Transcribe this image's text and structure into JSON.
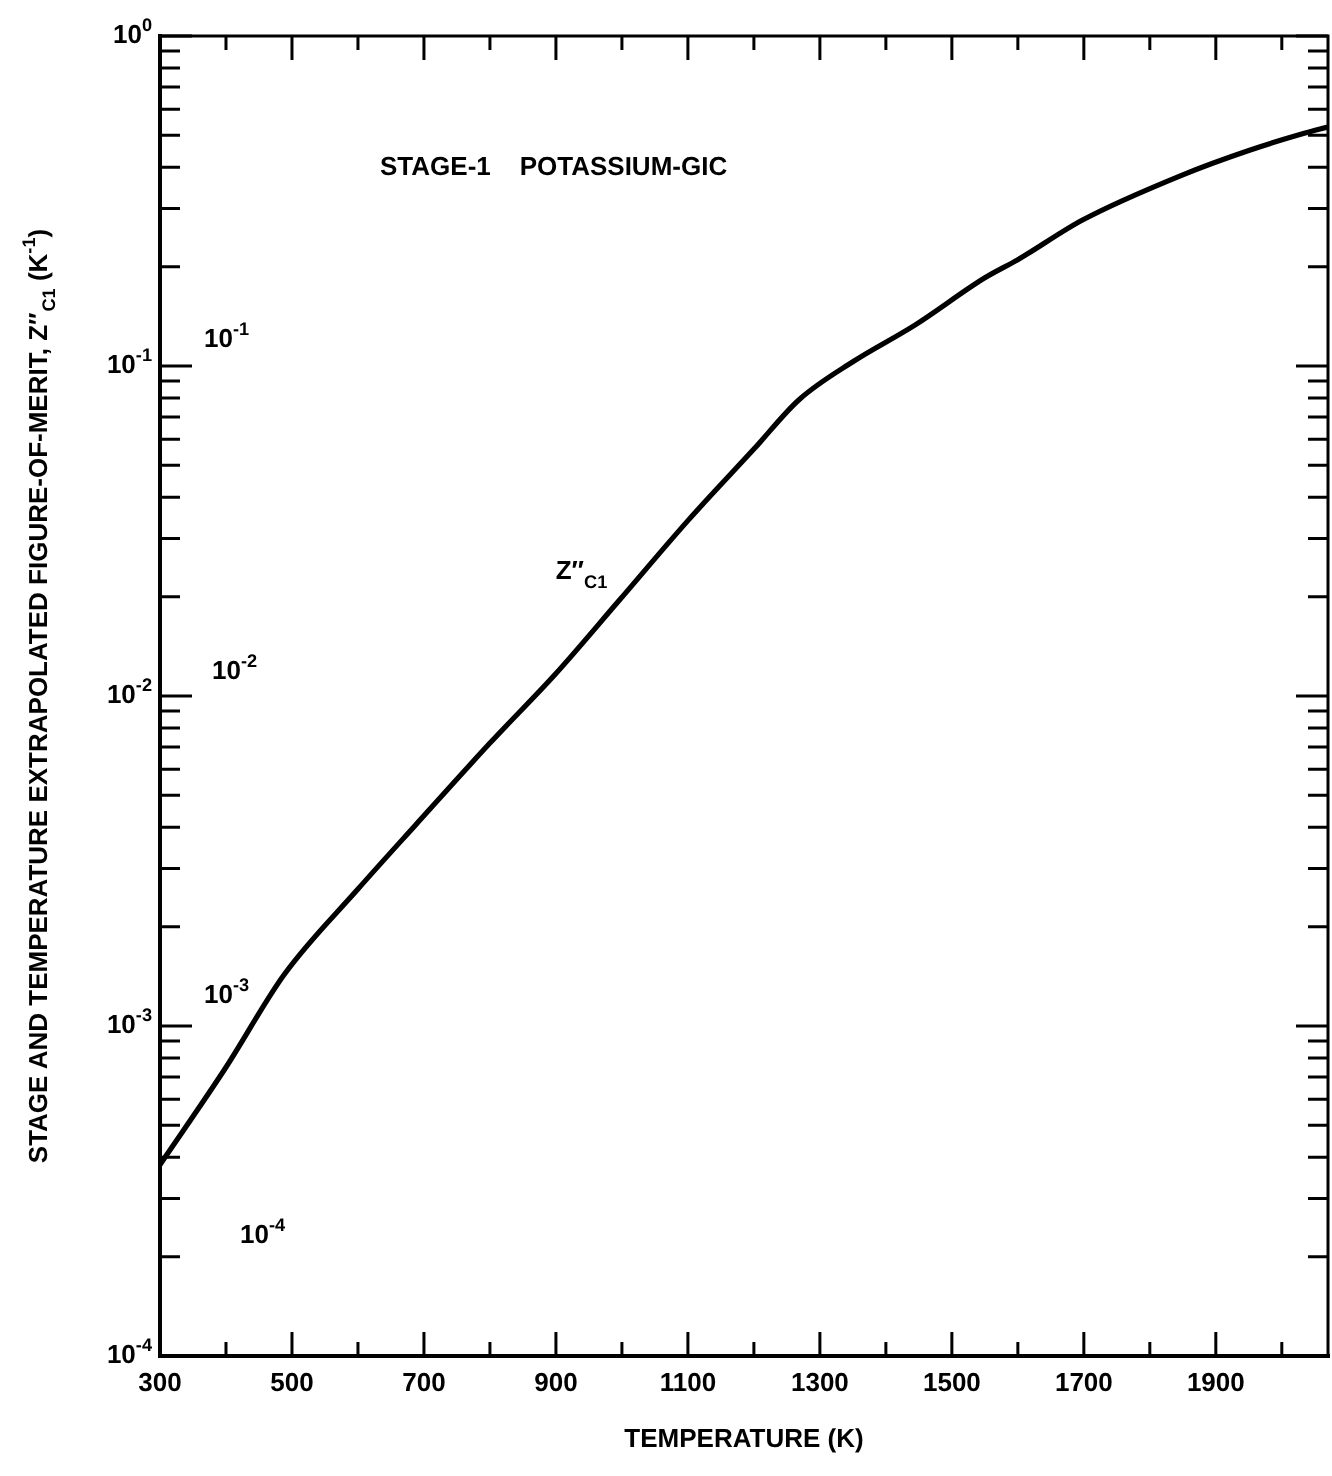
{
  "chart_data": {
    "type": "line",
    "xlabel": "TEMPERATURE (K)",
    "ylabel": "STAGE AND TEMPERATURE EXTRAPOLATED FIGURE-OF-MERIT, Z″$_{C1}$ (K$^{-1}$)",
    "x": [
      300,
      400,
      488,
      600,
      687,
      800,
      900,
      996,
      1100,
      1200,
      1268,
      1350,
      1444,
      1550,
      1600,
      1698,
      1849,
      1950,
      2034,
      2070
    ],
    "series": [
      {
        "color": "#000000",
        "values": [
          0.00038,
          0.00075,
          0.00143,
          0.0026,
          0.00406,
          0.0072,
          0.0117,
          0.0195,
          0.034,
          0.056,
          0.0789,
          0.103,
          0.133,
          0.185,
          0.21,
          0.277,
          0.379,
          0.45,
          0.507,
          0.53
        ]
      }
    ],
    "log": "y",
    "xlim": [
      300,
      2070
    ],
    "xticks": [
      300,
      {
        "value": 400,
        "label": null
      },
      500,
      {
        "value": 600,
        "label": null
      },
      700,
      {
        "value": 800,
        "label": null
      },
      900,
      {
        "value": 1000,
        "label": null
      },
      1100,
      {
        "value": 1200,
        "label": null
      },
      1300,
      {
        "value": 1400,
        "label": null
      },
      1500,
      {
        "value": 1600,
        "label": null
      },
      1700,
      {
        "value": 1800,
        "label": null
      },
      1900,
      {
        "value": 2000,
        "label": null
      }
    ],
    "ylim": [
      0.0001,
      1
    ],
    "yticks": [
      {
        "value": 0.0001,
        "label": "10$^{-4}$"
      },
      {
        "value": 0.0002,
        "label": null
      },
      {
        "value": 0.0003,
        "label": null
      },
      {
        "value": 0.0004,
        "label": null
      },
      {
        "value": 0.0005,
        "label": null
      },
      {
        "value": 0.0006,
        "label": null
      },
      {
        "value": 0.0007,
        "label": null
      },
      {
        "value": 0.0008,
        "label": null
      },
      {
        "value": 0.0009,
        "label": null
      },
      {
        "value": 0.001,
        "label": "10$^{-3}$"
      },
      {
        "value": 0.002,
        "label": null
      },
      {
        "value": 0.003,
        "label": null
      },
      {
        "value": 0.004,
        "label": null
      },
      {
        "value": 0.005,
        "label": null
      },
      {
        "value": 0.006,
        "label": null
      },
      {
        "value": 0.007,
        "label": null
      },
      {
        "value": 0.008,
        "label": null
      },
      {
        "value": 0.009,
        "label": null
      },
      {
        "value": 0.01,
        "label": "10$^{-2}$"
      },
      {
        "value": 0.02,
        "label": null
      },
      {
        "value": 0.03,
        "label": null
      },
      {
        "value": 0.04,
        "label": null
      },
      {
        "value": 0.05,
        "label": null
      },
      {
        "value": 0.06,
        "label": null
      },
      {
        "value": 0.07,
        "label": null
      },
      {
        "value": 0.08,
        "label": null
      },
      {
        "value": 0.09,
        "label": null
      },
      {
        "value": 0.1,
        "label": "10$^{-1}$"
      },
      {
        "value": 0.2,
        "label": null
      },
      {
        "value": 0.3,
        "label": null
      },
      {
        "value": 0.4,
        "label": null
      },
      {
        "value": 0.5,
        "label": null
      },
      {
        "value": 0.6,
        "label": null
      },
      {
        "value": 0.7,
        "label": null
      },
      {
        "value": 0.8,
        "label": null
      },
      {
        "value": 0.9,
        "label": null
      },
      {
        "value": 1,
        "label": "10$^{0}$"
      }
    ],
    "grid": false,
    "legend": false,
    "marker": "none",
    "line_style": "solid",
    "annotations": [
      "STAGE-1    POTASSIUM-GIC",
      {
        "text": "Z″$_{C1}$",
        "x": 996,
        "y": 0.0195
      },
      "10$^{-1}$",
      "10$^{-2}$",
      "10$^{-3}$",
      "10$^{-4}$"
    ]
  }
}
